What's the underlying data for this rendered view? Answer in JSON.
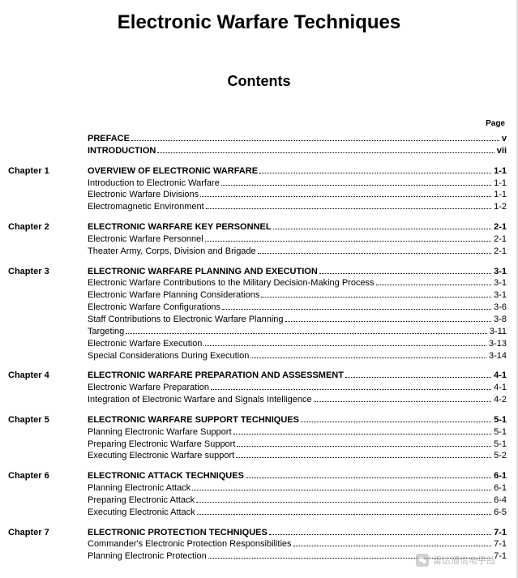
{
  "main_title": "Electronic Warfare Techniques",
  "contents_label": "Contents",
  "page_label": "Page",
  "watermark_text": "雷达通信电子战",
  "sections": [
    {
      "chapter": "",
      "heading": "PREFACE",
      "heading_page": "v",
      "subs": []
    },
    {
      "chapter": "",
      "heading": "INTRODUCTION",
      "heading_page": "vii",
      "subs": []
    },
    {
      "chapter": "Chapter 1",
      "heading": "OVERVIEW OF ELECTRONIC WARFARE",
      "heading_page": "1-1",
      "subs": [
        {
          "title": "Introduction to Electronic Warfare",
          "page": "1-1"
        },
        {
          "title": "Electronic Warfare Divisions",
          "page": "1-1"
        },
        {
          "title": "Electromagnetic Environment",
          "page": "1-2"
        }
      ]
    },
    {
      "chapter": "Chapter 2",
      "heading": "ELECTRONIC WARFARE KEY PERSONNEL",
      "heading_page": "2-1",
      "subs": [
        {
          "title": "Electronic Warfare Personnel",
          "page": "2-1"
        },
        {
          "title": "Theater Army, Corps, Division and Brigade",
          "page": "2-1"
        }
      ]
    },
    {
      "chapter": "Chapter 3",
      "heading": "ELECTRONIC WARFARE PLANNING AND EXECUTION",
      "heading_page": "3-1",
      "subs": [
        {
          "title": "Electronic Warfare Contributions to the Military Decision-Making Process",
          "page": "3-1"
        },
        {
          "title": "Electronic Warfare Planning Considerations",
          "page": "3-1"
        },
        {
          "title": "Electronic Warfare Configurations",
          "page": "3-6"
        },
        {
          "title": "Staff Contributions to Electronic Warfare Planning",
          "page": "3-8"
        },
        {
          "title": "Targeting",
          "page": "3-11"
        },
        {
          "title": "Electronic Warfare Execution",
          "page": "3-13"
        },
        {
          "title": "Special Considerations During Execution",
          "page": "3-14"
        }
      ]
    },
    {
      "chapter": "Chapter 4",
      "heading": "ELECTRONIC WARFARE PREPARATION AND ASSESSMENT",
      "heading_page": "4-1",
      "subs": [
        {
          "title": "Electronic Warfare Preparation",
          "page": "4-1"
        },
        {
          "title": "Integration of Electronic Warfare and Signals Intelligence",
          "page": "4-2"
        }
      ]
    },
    {
      "chapter": "Chapter 5",
      "heading": "ELECTRONIC WARFARE SUPPORT TECHNIQUES",
      "heading_page": "5-1",
      "subs": [
        {
          "title": "Planning Electronic Warfare Support",
          "page": "5-1"
        },
        {
          "title": "Preparing Electronic Warfare Support",
          "page": "5-1"
        },
        {
          "title": "Executing Electronic Warfare support",
          "page": "5-2"
        }
      ]
    },
    {
      "chapter": "Chapter 6",
      "heading": "ELECTRONIC ATTACK TECHNIQUES",
      "heading_page": "6-1",
      "subs": [
        {
          "title": "Planning Electronic Attack",
          "page": "6-1"
        },
        {
          "title": "Preparing Electronic Attack",
          "page": "6-4"
        },
        {
          "title": "Executing Electronic Attack",
          "page": "6-5"
        }
      ]
    },
    {
      "chapter": "Chapter 7",
      "heading": "ELECTRONIC PROTECTION TECHNIQUES",
      "heading_page": "7-1",
      "subs": [
        {
          "title": "Commander's Electronic Protection Responsibilities",
          "page": "7-1"
        },
        {
          "title": "Planning Electronic Protection",
          "page": "7-1"
        }
      ]
    }
  ]
}
